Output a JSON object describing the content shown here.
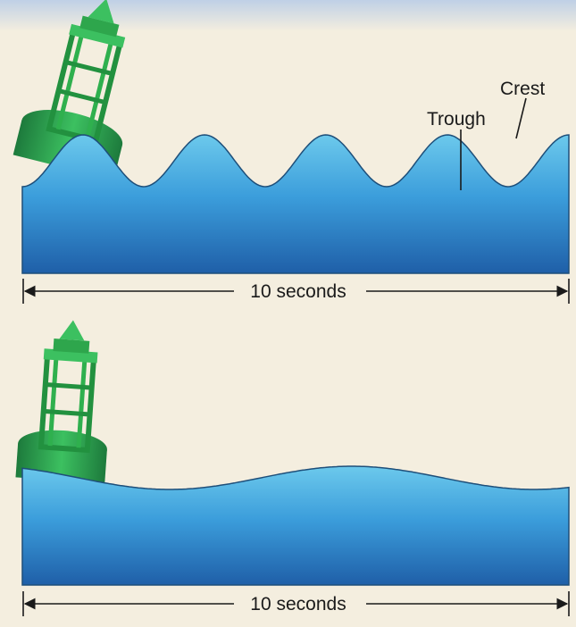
{
  "panels": [
    {
      "id": "high-frequency",
      "timespan_label": "10 seconds",
      "labels": {
        "crest": "Crest",
        "trough": "Trough"
      },
      "wave_cycles_visible": 4.5
    },
    {
      "id": "low-frequency",
      "timespan_label": "10 seconds",
      "wave_cycles_visible": 1.5
    }
  ],
  "colors": {
    "water_top": "#5fc3ea",
    "water_mid": "#2f8fd1",
    "water_bottom": "#1d5ea6",
    "wave_line": "#1e4f7a",
    "buoy_green": "#2fa84a",
    "buoy_dark": "#1d6b34",
    "sky": "#c9d7e8",
    "paper": "#f4eedf"
  }
}
